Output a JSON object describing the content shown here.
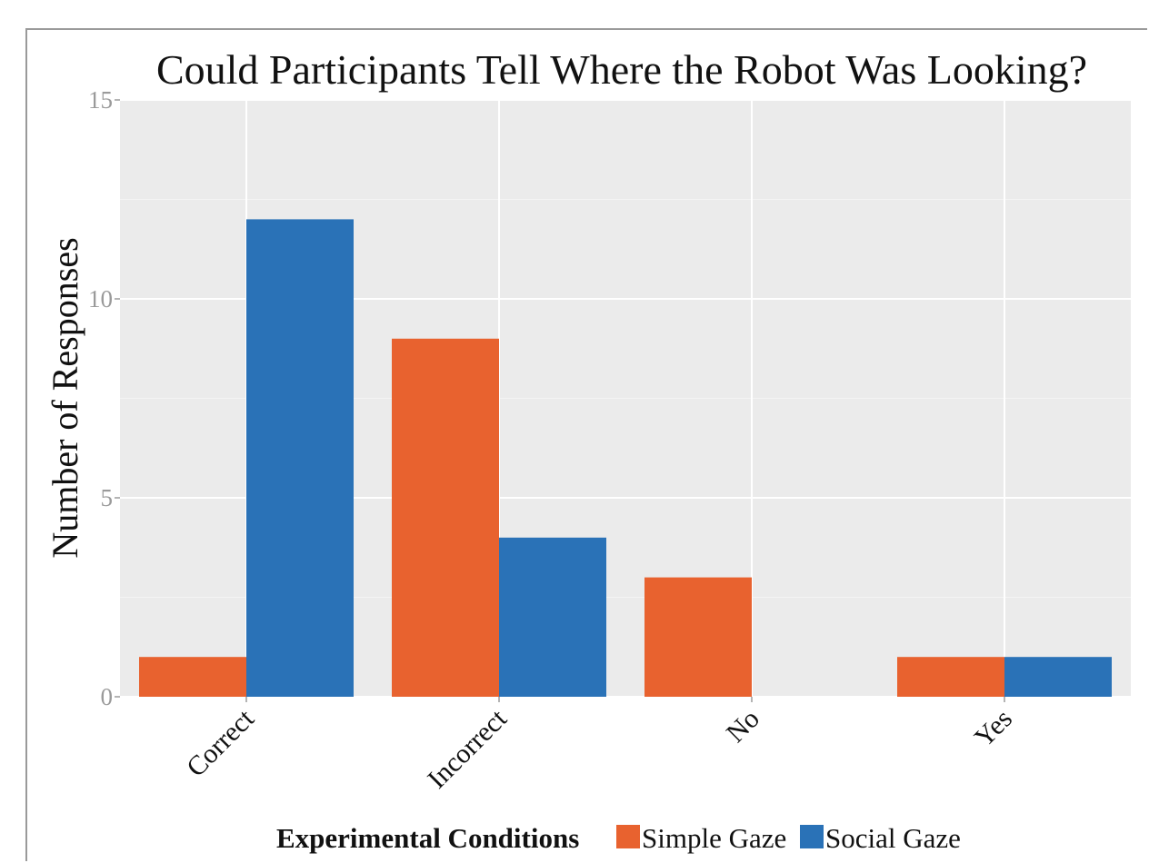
{
  "chart_data": {
    "type": "bar",
    "title": "Could Participants Tell Where the Robot Was Looking?",
    "xlabel": "",
    "ylabel": "Number of Responses",
    "ylim": [
      0,
      15
    ],
    "yticks": [
      0,
      5,
      10,
      15
    ],
    "categories": [
      "Correct",
      "Incorrect",
      "No",
      "Yes"
    ],
    "series": [
      {
        "name": "Simple Gaze",
        "color": "#E8622F",
        "values": [
          1,
          9,
          3,
          1
        ]
      },
      {
        "name": "Social Gaze",
        "color": "#2A72B7",
        "values": [
          12,
          4,
          0,
          1
        ]
      }
    ],
    "legend": {
      "title": "Experimental Conditions",
      "position": "bottom"
    },
    "grid": true,
    "panel_background": "#EBEBEB"
  }
}
